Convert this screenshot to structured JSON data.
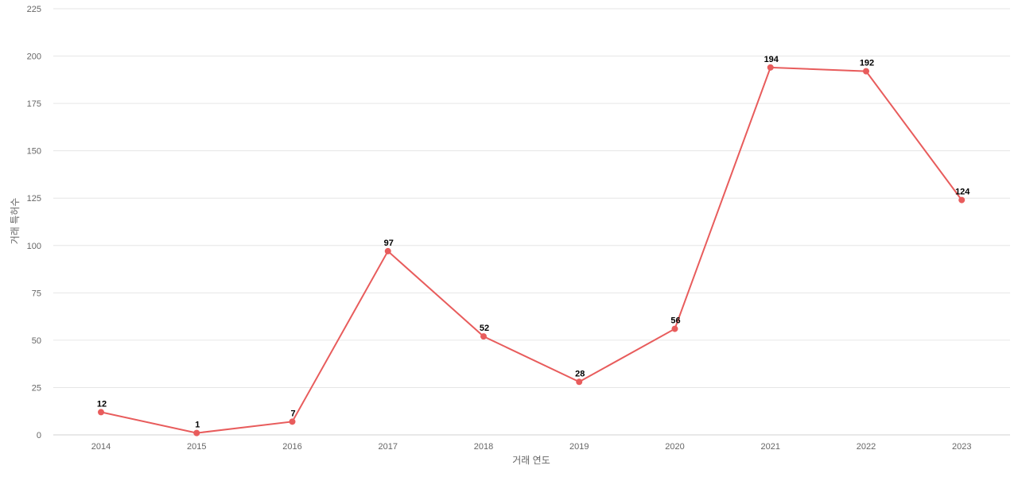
{
  "chart_data": {
    "type": "line",
    "title": "",
    "xlabel": "거래 연도",
    "ylabel": "거래 특허수",
    "categories": [
      "2014",
      "2015",
      "2016",
      "2017",
      "2018",
      "2019",
      "2020",
      "2021",
      "2022",
      "2023"
    ],
    "series": [
      {
        "values": [
          12,
          1,
          7,
          97,
          52,
          28,
          56,
          194,
          192,
          124
        ],
        "color": "#e85c5c"
      }
    ],
    "ylim": [
      0,
      225
    ],
    "yticks": [
      "0",
      "25",
      "50",
      "75",
      "100",
      "125",
      "150",
      "175",
      "200",
      "225"
    ],
    "grid": true,
    "legend": "none"
  }
}
